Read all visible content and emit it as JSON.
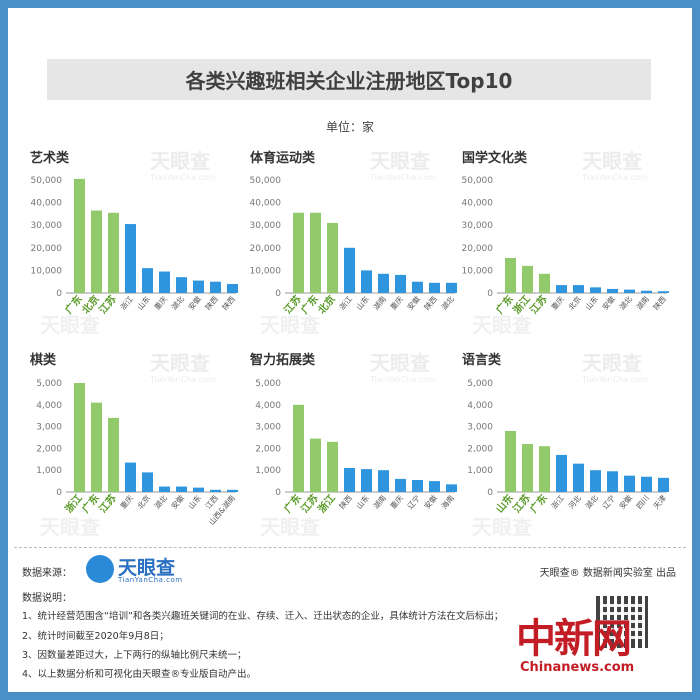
{
  "title": "各类兴趣班相关企业注册地区Top10",
  "unit": "单位：家",
  "source_label": "数据来源：",
  "logo": {
    "name": "天眼查",
    "sub": "TianYanCha.com"
  },
  "credit": "天眼查® 数据新闻实验室 出品",
  "notes_title": "数据说明：",
  "notes": [
    "1、统计经营范围含“培训”和各类兴趣班关键词的在业、存续、迁入、迁出状态的企业，具体统计方法在文后标出；",
    "2、统计时间截至2020年9月8日；",
    "3、因数量差距过大，上下两行的纵轴比例尺未统一；",
    "4、以上数据分析和可视化由天眼查®专业版自动产出。"
  ],
  "watermark": {
    "name": "天眼查",
    "url": "TianYanCha.com"
  },
  "footer_logo": {
    "text": "中新网",
    "url": "Chinanews.com"
  },
  "colors": {
    "highlight": "#92c96a",
    "bar": "#2f95de",
    "highlight_label": "#5a9a28",
    "axis": "#777777"
  },
  "chart_data": [
    {
      "type": "bar",
      "title": "艺术类",
      "ylim": [
        0,
        50000
      ],
      "yticks": [
        "0",
        "10,000",
        "20,000",
        "30,000",
        "40,000",
        "50,000"
      ],
      "categories": [
        "广东",
        "北京",
        "江苏",
        "浙江",
        "山东",
        "重庆",
        "湖北",
        "安徽",
        "陕西",
        "陕西"
      ],
      "values": [
        50500,
        36500,
        35500,
        30500,
        11000,
        9500,
        7000,
        5500,
        5000,
        4000
      ],
      "highlight_count": 3
    },
    {
      "type": "bar",
      "title": "体育运动类",
      "ylim": [
        0,
        50000
      ],
      "yticks": [
        "0",
        "10,000",
        "20,000",
        "30,000",
        "40,000",
        "50,000"
      ],
      "categories": [
        "江苏",
        "广东",
        "北京",
        "浙江",
        "山东",
        "湖南",
        "重庆",
        "安徽",
        "陕西",
        "湖北"
      ],
      "values": [
        35500,
        35500,
        31000,
        20000,
        10000,
        8500,
        8000,
        5000,
        4500,
        4500
      ],
      "highlight_count": 3
    },
    {
      "type": "bar",
      "title": "国学文化类",
      "ylim": [
        0,
        50000
      ],
      "yticks": [
        "0",
        "10,000",
        "20,000",
        "30,000",
        "40,000",
        "50,000"
      ],
      "categories": [
        "广东",
        "浙江",
        "江苏",
        "重庆",
        "北京",
        "山东",
        "安徽",
        "湖北",
        "湖南",
        "陕西"
      ],
      "values": [
        15500,
        12000,
        8500,
        3500,
        3500,
        2500,
        1800,
        1500,
        1000,
        800
      ],
      "highlight_count": 3
    },
    {
      "type": "bar",
      "title": "棋类",
      "ylim": [
        0,
        5000
      ],
      "yticks": [
        "0",
        "1,000",
        "2,000",
        "3,000",
        "4,000",
        "5,000"
      ],
      "categories": [
        "浙江",
        "广东",
        "江苏",
        "重庆",
        "北京",
        "湖北",
        "安徽",
        "山东",
        "江西",
        "山西&湖南"
      ],
      "values": [
        5000,
        4100,
        3400,
        1350,
        900,
        250,
        250,
        200,
        100,
        100
      ],
      "highlight_count": 3
    },
    {
      "type": "bar",
      "title": "智力拓展类",
      "ylim": [
        0,
        5000
      ],
      "yticks": [
        "0",
        "1,000",
        "2,000",
        "3,000",
        "4,000",
        "5,000"
      ],
      "categories": [
        "广东",
        "江苏",
        "浙江",
        "陕西",
        "山东",
        "湖南",
        "重庆",
        "辽宁",
        "安徽",
        "海南"
      ],
      "values": [
        4000,
        2450,
        2300,
        1100,
        1050,
        1000,
        600,
        550,
        500,
        350
      ],
      "highlight_count": 3
    },
    {
      "type": "bar",
      "title": "语言类",
      "ylim": [
        0,
        5000
      ],
      "yticks": [
        "0",
        "1,000",
        "2,000",
        "3,000",
        "4,000",
        "5,000"
      ],
      "categories": [
        "山东",
        "江苏",
        "广东",
        "浙江",
        "河北",
        "湖北",
        "辽宁",
        "安徽",
        "四川",
        "天津"
      ],
      "values": [
        2800,
        2200,
        2100,
        1700,
        1300,
        1000,
        950,
        750,
        700,
        650
      ],
      "highlight_count": 3
    }
  ]
}
